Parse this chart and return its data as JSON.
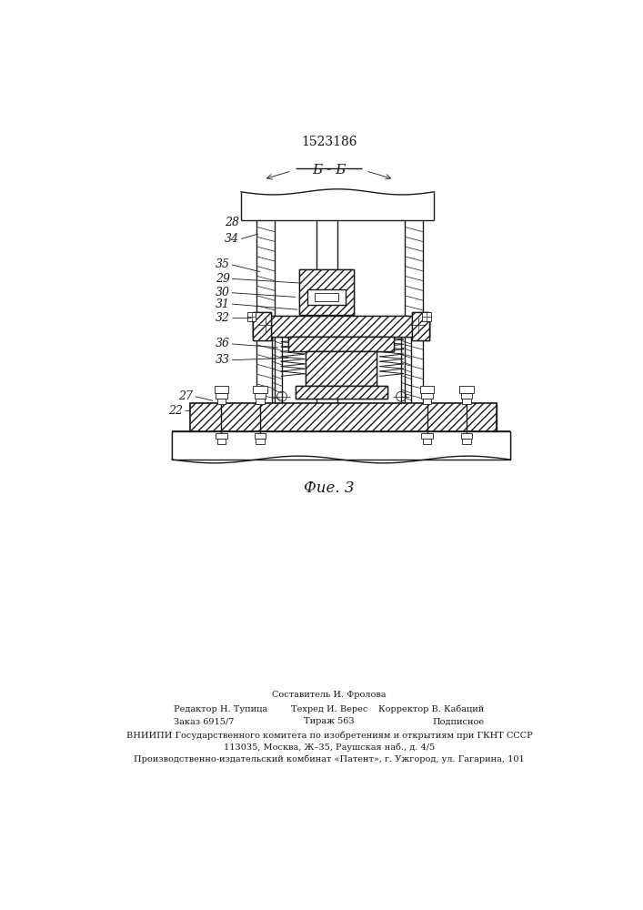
{
  "patent_number": "1523186",
  "figure_label": "Фие. 3",
  "section_label": "Б - Б",
  "background_color": "#ffffff",
  "line_color": "#1a1a1a",
  "footer_col1_lines": [
    "Редактор Н. Тупица",
    "Заказ 6915/7"
  ],
  "footer_col2_lines": [
    "Составитель И. Фролова",
    "Техред И. Верес",
    "Тираж 563"
  ],
  "footer_col3_lines": [
    "Корректор В. Кабаций",
    "Подписное"
  ],
  "footer_main_lines": [
    "ВНИИПИ Государственного комитета по изобретениям и открытиям при ГКНТ СССР",
    "113035, Москва, Ж–35, Раушская наб., д. 4/5",
    "Производственно-издательский комбинат «Патент», г. Ужгород, ул. Гагарина, 101"
  ]
}
